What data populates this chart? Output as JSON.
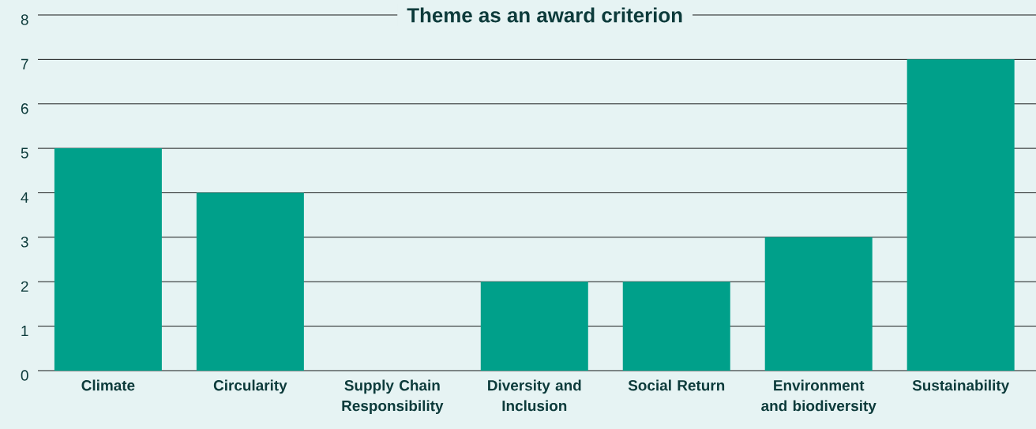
{
  "chart_data": {
    "type": "bar",
    "title": "Theme as an award criterion",
    "categories": [
      "Climate",
      "Circularity",
      "Supply Chain Responsibility",
      "Diversity and Inclusion",
      "Social Return",
      "Environment and biodiversity",
      "Sustainability"
    ],
    "values": [
      5,
      4,
      0,
      2,
      2,
      3,
      7
    ],
    "color": "#00a08a",
    "ylim": [
      0,
      8
    ],
    "yticks": [
      0,
      1,
      2,
      3,
      4,
      5,
      6,
      7,
      8
    ],
    "grid": "y"
  }
}
